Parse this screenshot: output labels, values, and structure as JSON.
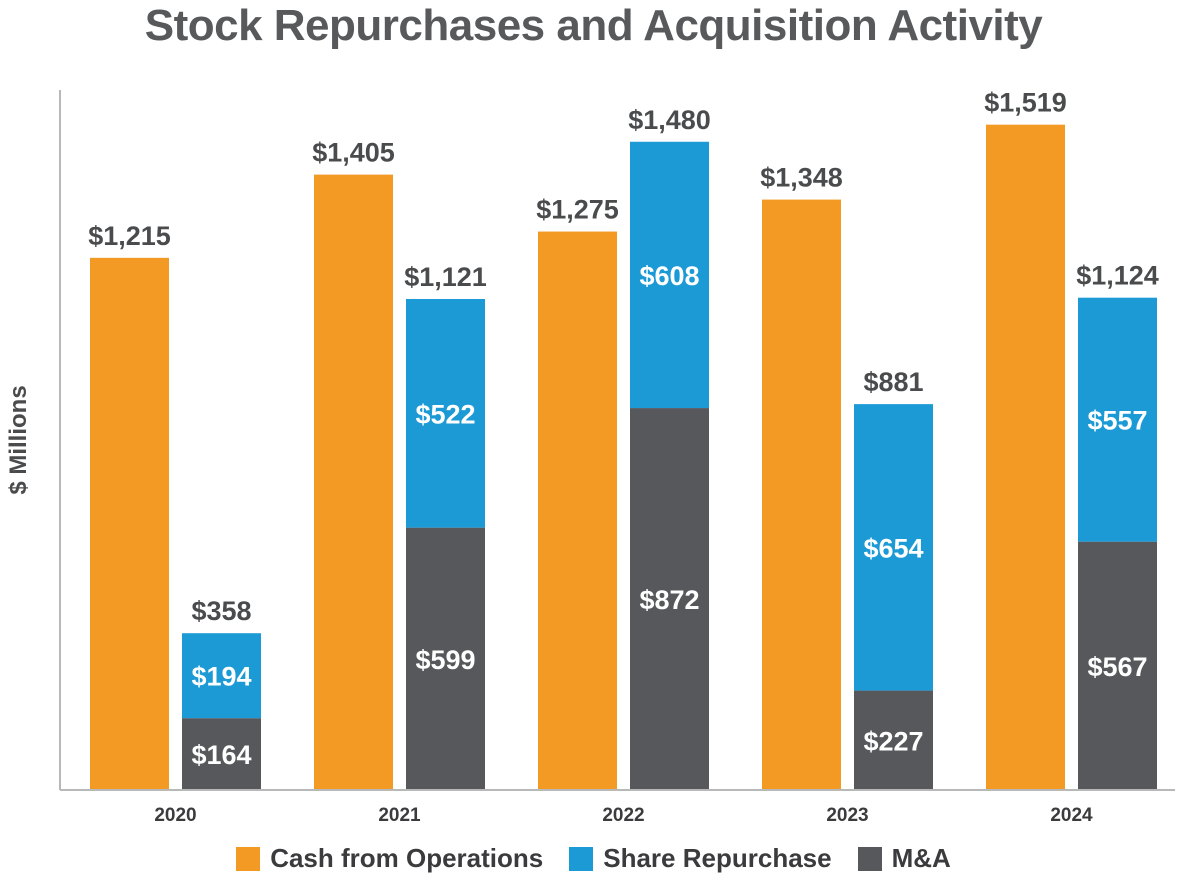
{
  "chart_data": {
    "type": "bar",
    "title": "Stock Repurchases and Acquisition Activity",
    "xlabel": "",
    "ylabel": "$ Millions",
    "ylim": [
      0,
      1600
    ],
    "categories": [
      "2020",
      "2021",
      "2022",
      "2023",
      "2024"
    ],
    "series": [
      {
        "name": "Cash from Operations",
        "stack": "a",
        "color": "#f39a25",
        "values": [
          1215,
          1405,
          1275,
          1348,
          1519
        ],
        "labels": [
          "$1,215",
          "$1,405",
          "$1,275",
          "$1,348",
          "$1,519"
        ]
      },
      {
        "name": "M&A",
        "stack": "b",
        "color": "#57585c",
        "values": [
          164,
          599,
          872,
          227,
          567
        ],
        "labels": [
          "$164",
          "$599",
          "$872",
          "$227",
          "$567"
        ]
      },
      {
        "name": "Share Repurchase",
        "stack": "b",
        "color": "#1c9ad6",
        "values": [
          194,
          522,
          608,
          654,
          557
        ],
        "labels": [
          "$194",
          "$522",
          "$608",
          "$654",
          "$557"
        ]
      }
    ],
    "stack_totals": [
      "$358",
      "$1,121",
      "$1,480",
      "$881",
      "$1,124"
    ],
    "legend": [
      {
        "label": "Cash from Operations",
        "color": "#f39a25"
      },
      {
        "label": "Share Repurchase",
        "color": "#1c9ad6"
      },
      {
        "label": "M&A",
        "color": "#57585c"
      }
    ],
    "legend_position": "bottom",
    "grid": false
  }
}
